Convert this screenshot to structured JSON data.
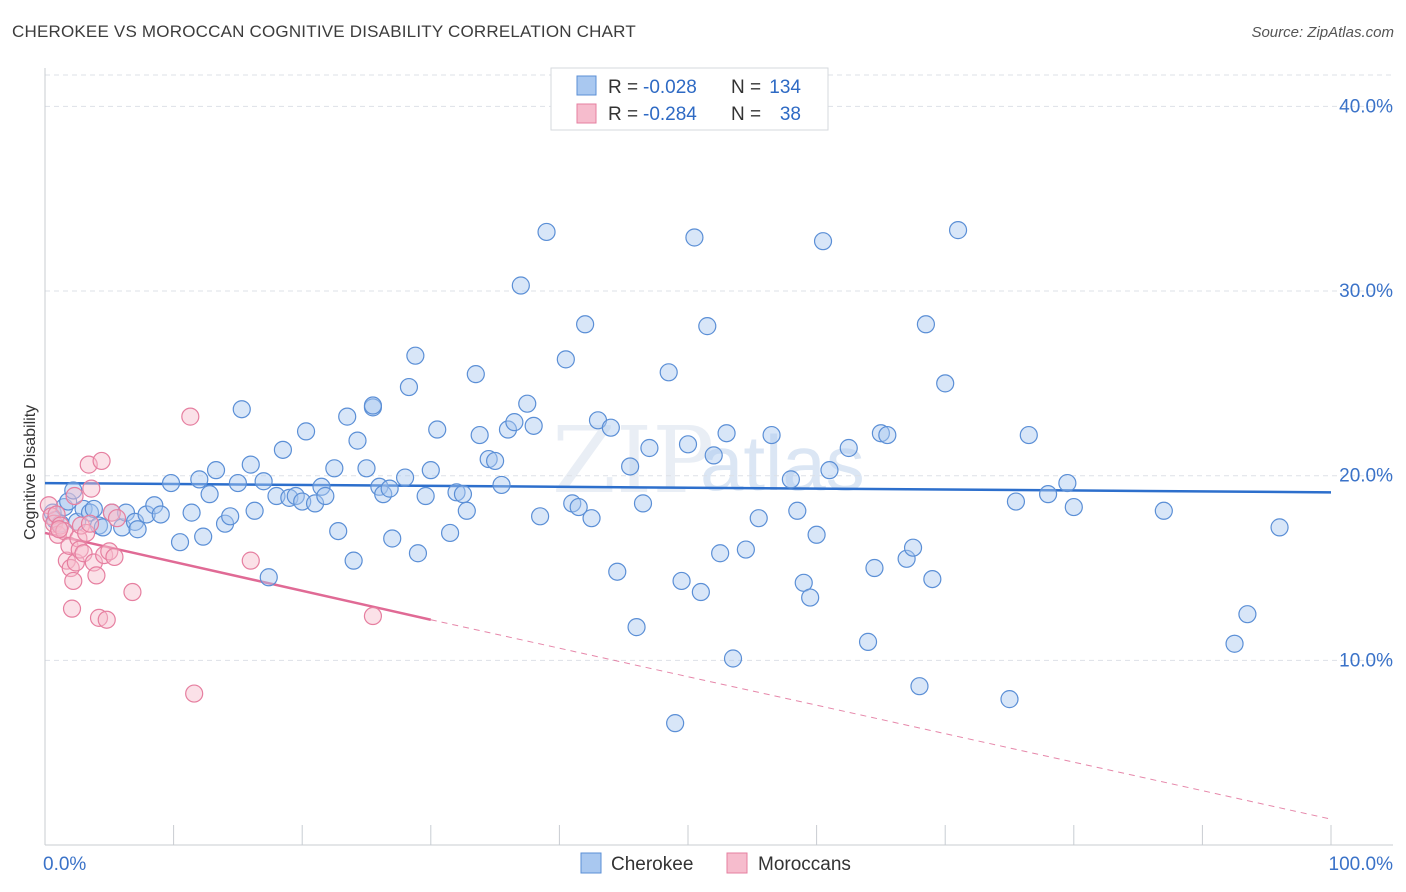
{
  "title": "CHEROKEE VS MOROCCAN COGNITIVE DISABILITY CORRELATION CHART",
  "source": "Source: ZipAtlas.com",
  "watermark": {
    "zip": "ZIP",
    "atlas": "atlas"
  },
  "colors": {
    "cherokee_fill": "#a9c8f0",
    "cherokee_stroke": "#5b8fd6",
    "cherokee_line": "#2d6fcc",
    "moroccan_fill": "#f6bccd",
    "moroccan_stroke": "#e67fa0",
    "moroccan_line": "#e06a95",
    "grid": "#dde1e7",
    "axis_label": "#3a72c8"
  },
  "legend": {
    "items": [
      {
        "r_label": "R =",
        "r_value": "-0.028",
        "n_label": "N =",
        "n_value": "134"
      },
      {
        "r_label": "R =",
        "r_value": "-0.284",
        "n_label": "N =",
        "n_value": "38"
      }
    ]
  },
  "bottom_legend": [
    "Cherokee",
    "Moroccans"
  ],
  "chart_data": {
    "type": "scatter",
    "title": "CHEROKEE VS MOROCCAN COGNITIVE DISABILITY CORRELATION CHART",
    "xlabel": "",
    "ylabel": "Cognitive Disability",
    "xlim": [
      0,
      100
    ],
    "ylim": [
      0,
      41.7
    ],
    "x_tick_labels": [
      "0.0%",
      "100.0%"
    ],
    "y_ticks": [
      10,
      20,
      30,
      40
    ],
    "y_tick_labels": [
      "10.0%",
      "20.0%",
      "30.0%",
      "40.0%"
    ],
    "grid": "horizontal dashed",
    "legend_position": "top-center",
    "series": [
      {
        "name": "Cherokee",
        "trend": {
          "x": [
            0,
            100
          ],
          "y": [
            19.6,
            19.1
          ]
        },
        "points": [
          [
            0.6,
            18.0
          ],
          [
            0.8,
            17.6
          ],
          [
            1.2,
            17.4
          ],
          [
            1.5,
            18.3
          ],
          [
            1.8,
            18.6
          ],
          [
            2.2,
            19.2
          ],
          [
            2.5,
            17.5
          ],
          [
            3.0,
            18.2
          ],
          [
            3.5,
            18.0
          ],
          [
            3.8,
            18.2
          ],
          [
            4.2,
            17.3
          ],
          [
            4.5,
            17.2
          ],
          [
            5.2,
            18.0
          ],
          [
            6.0,
            17.2
          ],
          [
            6.3,
            18.0
          ],
          [
            7.0,
            17.5
          ],
          [
            7.2,
            17.1
          ],
          [
            7.9,
            17.9
          ],
          [
            8.5,
            18.4
          ],
          [
            9.0,
            17.9
          ],
          [
            9.8,
            19.6
          ],
          [
            10.5,
            16.4
          ],
          [
            11.4,
            18.0
          ],
          [
            12.0,
            19.8
          ],
          [
            12.3,
            16.7
          ],
          [
            12.8,
            19.0
          ],
          [
            13.3,
            20.3
          ],
          [
            14.0,
            17.4
          ],
          [
            14.4,
            17.8
          ],
          [
            15.0,
            19.6
          ],
          [
            15.3,
            23.6
          ],
          [
            16.0,
            20.6
          ],
          [
            16.3,
            18.1
          ],
          [
            17.0,
            19.7
          ],
          [
            17.4,
            14.5
          ],
          [
            18.0,
            18.9
          ],
          [
            18.5,
            21.4
          ],
          [
            19.0,
            18.8
          ],
          [
            19.5,
            18.9
          ],
          [
            20.0,
            18.6
          ],
          [
            20.3,
            22.4
          ],
          [
            21.0,
            18.5
          ],
          [
            21.5,
            19.4
          ],
          [
            21.8,
            18.9
          ],
          [
            22.5,
            20.4
          ],
          [
            22.8,
            17.0
          ],
          [
            23.5,
            23.2
          ],
          [
            24.0,
            15.4
          ],
          [
            24.3,
            21.9
          ],
          [
            25.0,
            20.4
          ],
          [
            25.5,
            23.7
          ],
          [
            26.0,
            19.4
          ],
          [
            26.3,
            19.0
          ],
          [
            26.8,
            19.3
          ],
          [
            27.0,
            16.6
          ],
          [
            28.0,
            19.9
          ],
          [
            28.3,
            24.8
          ],
          [
            28.8,
            26.5
          ],
          [
            29.0,
            15.8
          ],
          [
            29.6,
            18.9
          ],
          [
            30.0,
            20.3
          ],
          [
            30.5,
            22.5
          ],
          [
            31.5,
            16.9
          ],
          [
            32.0,
            19.1
          ],
          [
            32.5,
            19.0
          ],
          [
            32.8,
            18.1
          ],
          [
            33.5,
            25.5
          ],
          [
            33.8,
            22.2
          ],
          [
            34.5,
            20.9
          ],
          [
            35.0,
            20.8
          ],
          [
            35.5,
            19.5
          ],
          [
            36.0,
            22.5
          ],
          [
            36.5,
            22.9
          ],
          [
            37.0,
            30.3
          ],
          [
            37.5,
            23.9
          ],
          [
            38.0,
            22.7
          ],
          [
            38.5,
            17.8
          ],
          [
            39.0,
            33.2
          ],
          [
            40.5,
            26.3
          ],
          [
            41.0,
            18.5
          ],
          [
            41.5,
            18.3
          ],
          [
            42.0,
            28.2
          ],
          [
            42.5,
            17.7
          ],
          [
            43.0,
            23.0
          ],
          [
            44.0,
            22.6
          ],
          [
            44.5,
            14.8
          ],
          [
            45.5,
            20.5
          ],
          [
            46.0,
            11.8
          ],
          [
            46.5,
            18.5
          ],
          [
            47.0,
            21.5
          ],
          [
            48.5,
            25.6
          ],
          [
            49.0,
            6.6
          ],
          [
            49.5,
            14.3
          ],
          [
            50.0,
            21.7
          ],
          [
            50.5,
            32.9
          ],
          [
            51.0,
            13.7
          ],
          [
            51.5,
            28.1
          ],
          [
            52.0,
            21.1
          ],
          [
            52.5,
            15.8
          ],
          [
            53.0,
            22.3
          ],
          [
            53.5,
            10.1
          ],
          [
            54.5,
            16.0
          ],
          [
            55.5,
            17.7
          ],
          [
            56.5,
            22.2
          ],
          [
            58.0,
            19.8
          ],
          [
            58.5,
            18.1
          ],
          [
            59.0,
            14.2
          ],
          [
            59.5,
            13.4
          ],
          [
            60.0,
            16.8
          ],
          [
            60.5,
            32.7
          ],
          [
            61.0,
            20.3
          ],
          [
            62.5,
            21.5
          ],
          [
            64.0,
            11.0
          ],
          [
            64.5,
            15.0
          ],
          [
            65.0,
            22.3
          ],
          [
            65.5,
            22.2
          ],
          [
            67.0,
            15.5
          ],
          [
            67.5,
            16.1
          ],
          [
            68.0,
            8.6
          ],
          [
            68.5,
            28.2
          ],
          [
            69.0,
            14.4
          ],
          [
            70.0,
            25.0
          ],
          [
            71.0,
            33.3
          ],
          [
            75.0,
            7.9
          ],
          [
            75.5,
            18.6
          ],
          [
            76.5,
            22.2
          ],
          [
            78.0,
            19.0
          ],
          [
            79.5,
            19.6
          ],
          [
            80.0,
            18.3
          ],
          [
            87.0,
            18.1
          ],
          [
            92.5,
            10.9
          ],
          [
            93.5,
            12.5
          ],
          [
            96.0,
            17.2
          ],
          [
            25.5,
            23.8
          ]
        ]
      },
      {
        "name": "Moroccans",
        "trend": {
          "x": [
            0,
            30
          ],
          "y": [
            16.9,
            12.2
          ]
        },
        "trend_extension": {
          "x": [
            30,
            100
          ],
          "y": [
            12.2,
            1.4
          ]
        },
        "points": [
          [
            0.3,
            18.4
          ],
          [
            0.5,
            17.8
          ],
          [
            0.7,
            17.4
          ],
          [
            0.9,
            17.9
          ],
          [
            1.0,
            16.8
          ],
          [
            1.2,
            17.3
          ],
          [
            1.5,
            17.0
          ],
          [
            1.7,
            15.4
          ],
          [
            1.9,
            16.2
          ],
          [
            2.0,
            15.0
          ],
          [
            2.1,
            12.8
          ],
          [
            2.2,
            14.3
          ],
          [
            2.3,
            18.9
          ],
          [
            2.4,
            15.3
          ],
          [
            2.6,
            16.6
          ],
          [
            2.7,
            16.0
          ],
          [
            2.8,
            17.3
          ],
          [
            3.0,
            15.8
          ],
          [
            3.2,
            16.9
          ],
          [
            3.4,
            20.6
          ],
          [
            3.5,
            17.4
          ],
          [
            3.6,
            19.3
          ],
          [
            3.8,
            15.3
          ],
          [
            4.0,
            14.6
          ],
          [
            4.2,
            12.3
          ],
          [
            4.4,
            20.8
          ],
          [
            4.6,
            15.7
          ],
          [
            4.8,
            12.2
          ],
          [
            5.0,
            15.9
          ],
          [
            5.2,
            18.0
          ],
          [
            5.4,
            15.6
          ],
          [
            5.6,
            17.7
          ],
          [
            6.8,
            13.7
          ],
          [
            11.3,
            23.2
          ],
          [
            11.6,
            8.2
          ],
          [
            16.0,
            15.4
          ],
          [
            25.5,
            12.4
          ],
          [
            1.1,
            17.1
          ]
        ]
      }
    ]
  }
}
